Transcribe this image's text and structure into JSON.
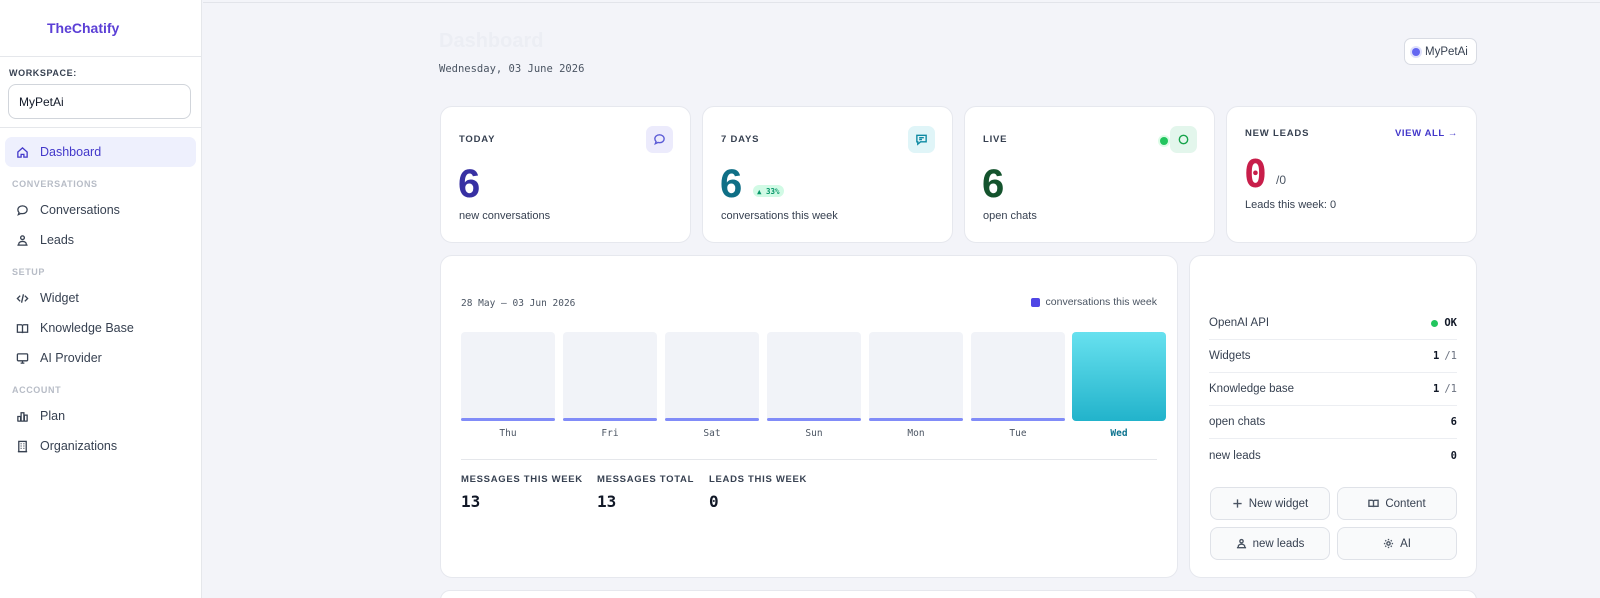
{
  "app": {
    "brand": "TheChatify"
  },
  "sidebar": {
    "workspace_label": "WORKSPACE:",
    "workspace_value": "MyPetAi",
    "items": [
      {
        "label": "Dashboard",
        "icon": "home-icon"
      },
      {
        "label": "Conversations",
        "icon": "chat-bubble-icon"
      },
      {
        "label": "Leads",
        "icon": "leads-icon"
      },
      {
        "label": "Widget",
        "icon": "code-icon"
      },
      {
        "label": "Knowledge Base",
        "icon": "book-icon"
      },
      {
        "label": "AI Provider",
        "icon": "monitor-icon"
      },
      {
        "label": "Plan",
        "icon": "bar-chart-icon"
      },
      {
        "label": "Organizations",
        "icon": "building-icon"
      }
    ],
    "groups": {
      "conversations": "CONVERSATIONS",
      "setup": "SETUP",
      "account": "ACCOUNT"
    }
  },
  "header": {
    "title": "Dashboard",
    "date": "Wednesday, 03 June 2026",
    "workspace_chip": "MyPetAi"
  },
  "stats": {
    "today": {
      "label": "TODAY",
      "value": "6",
      "sub": "new conversations"
    },
    "week": {
      "label": "7 DAYS",
      "value": "6",
      "badge": "▲ 33%",
      "sub": "conversations this week"
    },
    "live": {
      "label": "LIVE",
      "value": "6",
      "sub": "open chats"
    },
    "leads": {
      "label": "NEW LEADS",
      "view_all": "VIEW ALL →",
      "value": "0",
      "of": "/0",
      "sub": "Leads this week: 0"
    }
  },
  "chart": {
    "range": "28 May — 03 Jun 2026",
    "legend": "conversations this week",
    "metrics": [
      {
        "label": "MESSAGES THIS WEEK",
        "value": "13"
      },
      {
        "label": "MESSAGES TOTAL",
        "value": "13"
      },
      {
        "label": "LEADS THIS WEEK",
        "value": "0"
      }
    ]
  },
  "chart_data": {
    "type": "bar",
    "categories": [
      "Thu",
      "Fri",
      "Sat",
      "Sun",
      "Mon",
      "Tue",
      "Wed"
    ],
    "series": [
      {
        "name": "conversations this week",
        "values": [
          0,
          0,
          0,
          0,
          0,
          0,
          6
        ]
      }
    ],
    "highlight": "Wed",
    "colors": {
      "bar": "#22b3cb",
      "baseline": "#818cf8",
      "highlight_label": "#0e7490"
    }
  },
  "status": {
    "rows": [
      {
        "label": "OpenAI API",
        "value": "OK",
        "muted": ""
      },
      {
        "label": "Widgets",
        "value": "1",
        "muted": "/1"
      },
      {
        "label": "Knowledge base",
        "value": "1",
        "muted": "/1"
      },
      {
        "label": "open chats",
        "value": "6",
        "muted": ""
      },
      {
        "label": "new leads",
        "value": "0",
        "muted": ""
      }
    ],
    "actions": [
      "New widget",
      "Content",
      "new leads",
      "AI"
    ]
  },
  "colors": {
    "brand": "#5b3fd6",
    "today_value": "#3730a3",
    "week_value": "#0f6f86",
    "live_value": "#14532d",
    "leads_value": "#c81e4a"
  }
}
